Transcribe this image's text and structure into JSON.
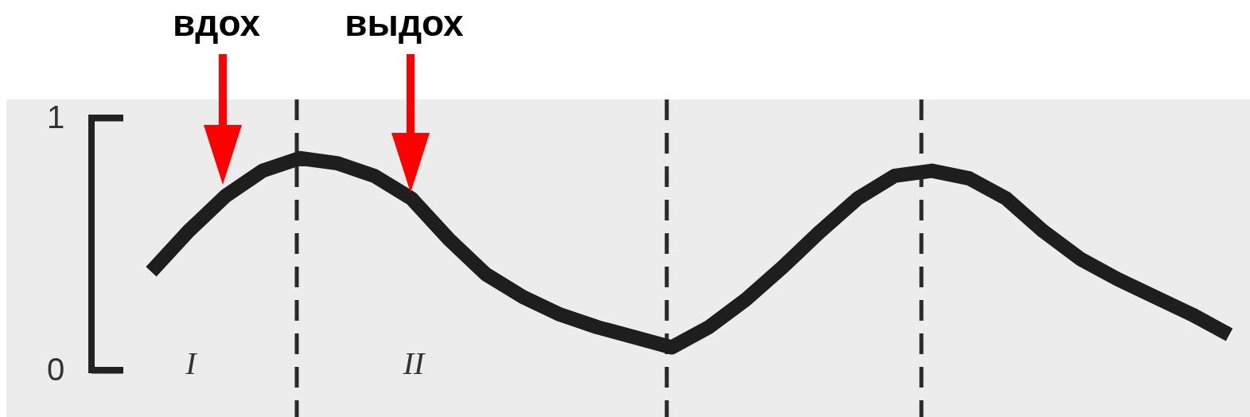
{
  "chart_data": {
    "type": "line",
    "ylim": [
      0,
      1
    ],
    "yticks": [
      0,
      1
    ],
    "tick_labels": "y",
    "categories": [
      null,
      null,
      null,
      null,
      null,
      null,
      null,
      null,
      null,
      null,
      null,
      null,
      null,
      null,
      null,
      null,
      null,
      null,
      null,
      null,
      null,
      null,
      null,
      null,
      null,
      null,
      null,
      null,
      null,
      null
    ],
    "series": [
      {
        "color": "#1e1e1e",
        "values": [
          0.39,
          0.55,
          0.69,
          0.79,
          0.84,
          0.82,
          0.77,
          0.68,
          0.52,
          0.38,
          0.29,
          0.22,
          0.17,
          0.13,
          0.09,
          0.17,
          0.28,
          0.41,
          0.55,
          0.68,
          0.77,
          0.79,
          0.76,
          0.68,
          0.55,
          0.44,
          0.36,
          0.29,
          0.22,
          0.14
        ]
      }
    ],
    "annotations": [
      "вдох",
      "выдох",
      "I",
      "II"
    ]
  }
}
